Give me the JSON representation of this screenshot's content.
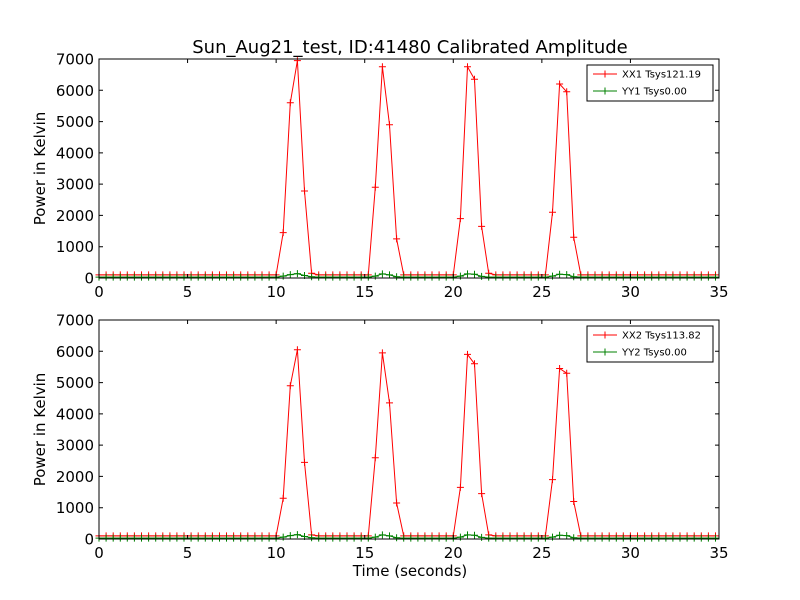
{
  "chart_data": [
    {
      "type": "line",
      "title": "Sun_Aug21_test, ID:41480 Calibrated Amplitude",
      "xlabel": "",
      "ylabel": "Power in Kelvin",
      "xlim": [
        0,
        35
      ],
      "ylim": [
        0,
        7000
      ],
      "xticks": [
        0,
        5,
        10,
        15,
        20,
        25,
        30,
        35
      ],
      "yticks": [
        0,
        1000,
        2000,
        3000,
        4000,
        5000,
        6000,
        7000
      ],
      "grid": false,
      "legend": "top-right",
      "x_step": 0.4,
      "series": [
        {
          "name": "XX1 Tsys121.19",
          "color": "#ff0000",
          "values": [
            100,
            100,
            100,
            100,
            100,
            100,
            100,
            100,
            100,
            100,
            100,
            100,
            100,
            100,
            100,
            100,
            100,
            100,
            100,
            100,
            100,
            100,
            100,
            100,
            100,
            100,
            1450,
            5600,
            6950,
            2780,
            150,
            100,
            100,
            100,
            100,
            100,
            100,
            100,
            100,
            2900,
            6750,
            4900,
            1250,
            100,
            100,
            100,
            100,
            100,
            100,
            100,
            100,
            1900,
            6750,
            6350,
            1650,
            150,
            100,
            100,
            100,
            100,
            100,
            100,
            100,
            100,
            2100,
            6200,
            5950,
            1300,
            100,
            100,
            100,
            100,
            100,
            100,
            100,
            100,
            100,
            100,
            100,
            100,
            100,
            100,
            100,
            100,
            100,
            100,
            100,
            100
          ]
        },
        {
          "name": "YY1 Tsys0.00",
          "color": "#008000",
          "values": [
            30,
            30,
            30,
            30,
            30,
            30,
            30,
            30,
            30,
            30,
            30,
            30,
            30,
            30,
            30,
            30,
            30,
            30,
            30,
            30,
            30,
            30,
            30,
            30,
            30,
            30,
            60,
            110,
            140,
            80,
            40,
            30,
            30,
            30,
            30,
            30,
            30,
            30,
            30,
            60,
            130,
            100,
            40,
            30,
            30,
            30,
            30,
            30,
            30,
            30,
            30,
            60,
            130,
            120,
            50,
            30,
            30,
            30,
            30,
            30,
            30,
            30,
            30,
            30,
            60,
            120,
            110,
            40,
            30,
            30,
            30,
            30,
            30,
            30,
            30,
            30,
            30,
            30,
            30,
            30,
            30,
            30,
            30,
            30,
            30,
            30,
            30,
            30
          ]
        }
      ]
    },
    {
      "type": "line",
      "title": "",
      "xlabel": "Time (seconds)",
      "ylabel": "Power in Kelvin",
      "xlim": [
        0,
        35
      ],
      "ylim": [
        0,
        7000
      ],
      "xticks": [
        0,
        5,
        10,
        15,
        20,
        25,
        30,
        35
      ],
      "yticks": [
        0,
        1000,
        2000,
        3000,
        4000,
        5000,
        6000,
        7000
      ],
      "grid": false,
      "legend": "top-right",
      "x_step": 0.4,
      "series": [
        {
          "name": "XX2 Tsys113.82",
          "color": "#ff0000",
          "values": [
            100,
            100,
            100,
            100,
            100,
            100,
            100,
            100,
            100,
            100,
            100,
            100,
            100,
            100,
            100,
            100,
            100,
            100,
            100,
            100,
            100,
            100,
            100,
            100,
            100,
            100,
            1300,
            4900,
            6050,
            2450,
            130,
            100,
            100,
            100,
            100,
            100,
            100,
            100,
            100,
            2600,
            5950,
            4350,
            1150,
            100,
            100,
            100,
            100,
            100,
            100,
            100,
            100,
            1650,
            5900,
            5600,
            1450,
            130,
            100,
            100,
            100,
            100,
            100,
            100,
            100,
            100,
            1900,
            5450,
            5300,
            1200,
            100,
            100,
            100,
            100,
            100,
            100,
            100,
            100,
            100,
            100,
            100,
            100,
            100,
            100,
            100,
            100,
            100,
            100,
            100,
            100
          ]
        },
        {
          "name": "YY2 Tsys0.00",
          "color": "#008000",
          "values": [
            30,
            30,
            30,
            30,
            30,
            30,
            30,
            30,
            30,
            30,
            30,
            30,
            30,
            30,
            30,
            30,
            30,
            30,
            30,
            30,
            30,
            30,
            30,
            30,
            30,
            30,
            60,
            110,
            140,
            80,
            40,
            30,
            30,
            30,
            30,
            30,
            30,
            30,
            30,
            60,
            130,
            100,
            40,
            30,
            30,
            30,
            30,
            30,
            30,
            30,
            30,
            60,
            130,
            120,
            50,
            30,
            30,
            30,
            30,
            30,
            30,
            30,
            30,
            30,
            60,
            120,
            110,
            40,
            30,
            30,
            30,
            30,
            30,
            30,
            30,
            30,
            30,
            30,
            30,
            30,
            30,
            30,
            30,
            30,
            30,
            30,
            30,
            30
          ]
        }
      ]
    }
  ]
}
